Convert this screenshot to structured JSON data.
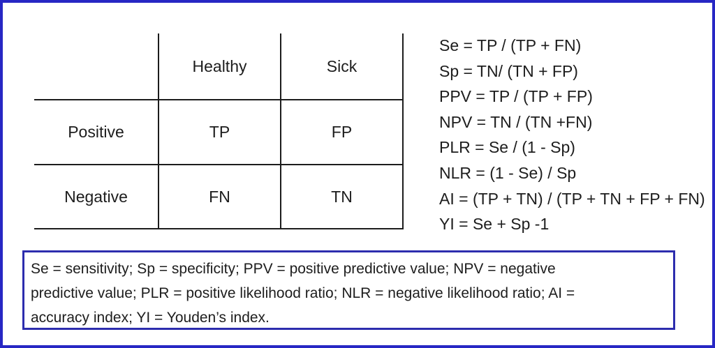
{
  "theme": {
    "outer_border": "#2727c4",
    "legend_border": "#2d2dae",
    "table_line": "#1c1c1c",
    "text": "#1d1d1d",
    "background": "#ffffff"
  },
  "matrix": {
    "corner": "",
    "col_headers": [
      "Healthy",
      "Sick"
    ],
    "row_headers": [
      "Positive",
      "Negative"
    ],
    "cells": [
      [
        "TP",
        "FP"
      ],
      [
        "FN",
        "TN"
      ]
    ]
  },
  "formulas": [
    "Se = TP / (TP + FN)",
    "Sp = TN/ (TN + FP)",
    "PPV = TP / (TP + FP)",
    "NPV = TN / (TN +FN)",
    "PLR = Se / (1 - Sp)",
    "NLR = (1 - Se) / Sp",
    "AI = (TP + TN) / (TP + TN + FP + FN)",
    "YI = Se + Sp -1"
  ],
  "legend": {
    "text": "Se = sensitivity; Sp = specificity; PPV = positive predictive value; NPV = negative predictive value; PLR = positive likelihood ratio; NLR = negative likelihood ratio; AI = accuracy index; YI = Youden’s index.",
    "lines": [
      "Se = sensitivity; Sp = specificity; PPV = positive predictive value; NPV = negative",
      "predictive value; PLR = positive likelihood ratio; NLR = negative likelihood ratio; AI =",
      "accuracy index; YI = Youden’s index."
    ]
  }
}
